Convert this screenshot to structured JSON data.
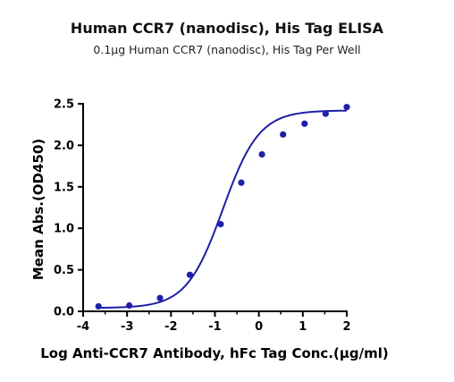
{
  "chart_data": {
    "type": "scatter",
    "title": "Human CCR7 (nanodisc), His Tag ELISA",
    "subtitle": "0.1μg Human CCR7 (nanodisc), His Tag Per Well",
    "xlabel": "Log Anti-CCR7 Antibody, hFc Tag Conc.(μg/ml)",
    "ylabel": "Mean Abs.(OD450)",
    "xlim": [
      -4,
      2
    ],
    "ylim": [
      0,
      2.5
    ],
    "xticks": [
      -4,
      -3,
      -2,
      -1,
      0,
      1,
      2
    ],
    "xtick_labels": [
      "-4",
      "-3",
      "-2",
      "-1",
      "0",
      "1",
      "2"
    ],
    "yticks": [
      0,
      0.5,
      1.0,
      1.5,
      2.0,
      2.5
    ],
    "ytick_labels": [
      "0.0",
      "0.5",
      "1.0",
      "1.5",
      "2.0",
      "2.5"
    ],
    "grid": false,
    "series": [
      {
        "x": [
          -3.65,
          -2.95,
          -2.25,
          -1.57,
          -0.87,
          -0.4,
          0.07,
          0.55,
          1.04,
          1.52,
          2.0
        ],
        "y": [
          0.06,
          0.07,
          0.16,
          0.44,
          1.05,
          1.55,
          1.89,
          2.13,
          2.26,
          2.38,
          2.46
        ],
        "color": "#1f1fa8"
      }
    ],
    "fit_curve": {
      "model": "4PL",
      "bottom": 0.04,
      "top": 2.42,
      "logEC50": -0.82,
      "hill": 1.05,
      "color": "#1f1fa8"
    }
  }
}
